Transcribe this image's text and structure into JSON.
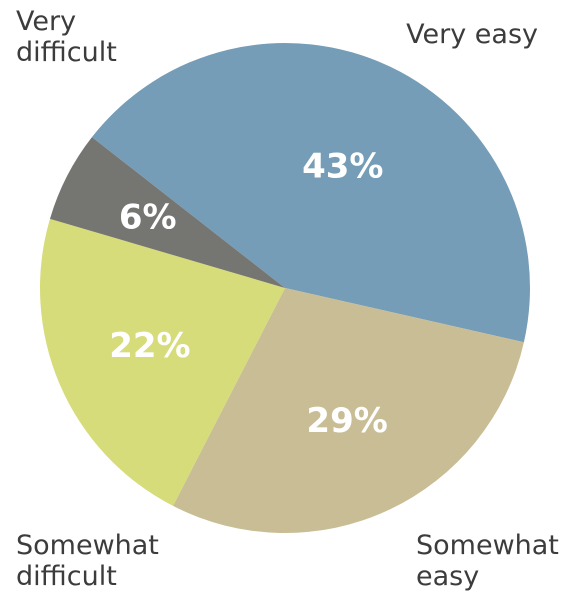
{
  "chart_data": {
    "type": "pie",
    "slices": [
      {
        "label": "Very easy",
        "label_lines": [
          "Very easy"
        ],
        "value": 43,
        "value_label": "43%",
        "color": "#769db7"
      },
      {
        "label": "Somewhat easy",
        "label_lines": [
          "Somewhat",
          "easy"
        ],
        "value": 29,
        "value_label": "29%",
        "color": "#c9bd95"
      },
      {
        "label": "Somewhat difficult",
        "label_lines": [
          "Somewhat",
          "difficult"
        ],
        "value": 22,
        "value_label": "22%",
        "color": "#d6dc7a"
      },
      {
        "label": "Very difficult",
        "label_lines": [
          "Very",
          "difficult"
        ],
        "value": 6,
        "value_label": "6%",
        "color": "#757572"
      }
    ]
  }
}
